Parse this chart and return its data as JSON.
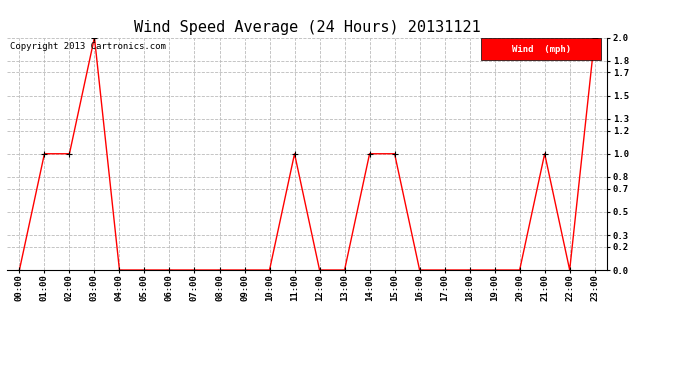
{
  "title": "Wind Speed Average (24 Hours) 20131121",
  "copyright_text": "Copyright 2013 Cartronics.com",
  "legend_label": "Wind  (mph)",
  "legend_bg_color": "#ff0000",
  "legend_text_color": "#ffffff",
  "x_labels": [
    "00:00",
    "01:00",
    "02:00",
    "03:00",
    "04:00",
    "05:00",
    "06:00",
    "07:00",
    "08:00",
    "09:00",
    "10:00",
    "11:00",
    "12:00",
    "13:00",
    "14:00",
    "15:00",
    "16:00",
    "17:00",
    "18:00",
    "19:00",
    "20:00",
    "21:00",
    "22:00",
    "23:00"
  ],
  "y_values": [
    0.0,
    1.0,
    1.0,
    2.0,
    0.0,
    0.0,
    0.0,
    0.0,
    0.0,
    0.0,
    0.0,
    1.0,
    0.0,
    0.0,
    1.0,
    1.0,
    0.0,
    0.0,
    0.0,
    0.0,
    0.0,
    1.0,
    0.0,
    2.0
  ],
  "line_color": "#ff0000",
  "marker_color": "#000000",
  "bg_color": "#ffffff",
  "grid_color": "#bbbbbb",
  "ylim": [
    0.0,
    2.0
  ],
  "yticks": [
    0.0,
    0.2,
    0.3,
    0.5,
    0.7,
    0.8,
    1.0,
    1.2,
    1.3,
    1.5,
    1.7,
    1.8,
    2.0
  ],
  "title_fontsize": 11,
  "copyright_fontsize": 6.5,
  "tick_fontsize": 6.5
}
